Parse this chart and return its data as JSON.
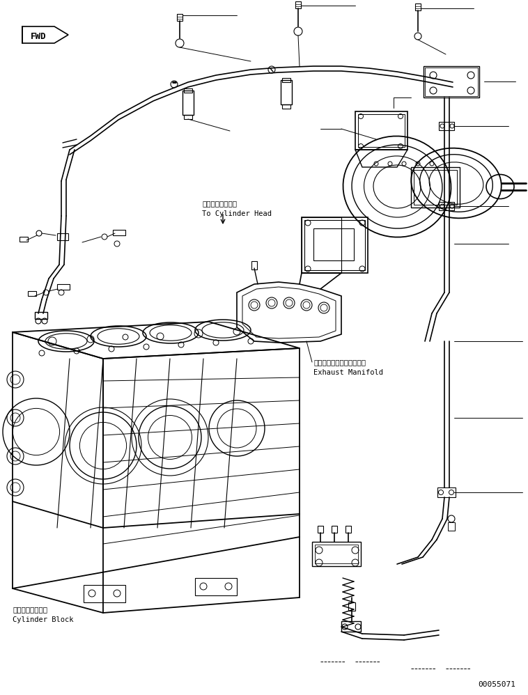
{
  "bg_color": "#ffffff",
  "line_color": "#000000",
  "lw": 0.7,
  "fig_width": 7.58,
  "fig_height": 9.98,
  "dpi": 100,
  "labels": {
    "fwd": "FWD",
    "cylinder_head_jp": "シリンダヘッドへ",
    "cylinder_head_en": "To Cylinder Head",
    "exhaust_manifold_jp": "エキゾーストマニホールド",
    "exhaust_manifold_en": "Exhaust Manifold",
    "cylinder_block_jp": "シリンダブロック",
    "cylinder_block_en": "Cylinder Block",
    "part_number": "00055071"
  }
}
